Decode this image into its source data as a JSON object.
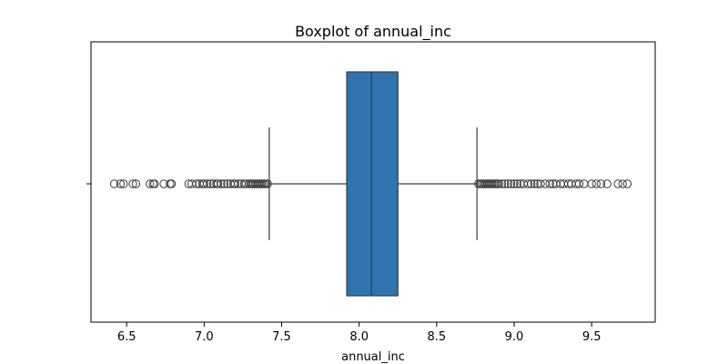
{
  "chart_data": {
    "type": "boxplot",
    "title": "Boxplot of annual_inc",
    "xlabel": "annual_inc",
    "ylabel": "",
    "xlim": [
      6.27,
      9.91
    ],
    "x_ticks": [
      6.5,
      7.0,
      7.5,
      8.0,
      8.5,
      9.0,
      9.5
    ],
    "x_tick_labels": [
      "6.5",
      "7.0",
      "7.5",
      "8.0",
      "8.5",
      "9.0",
      "9.5"
    ],
    "grid": false,
    "box": {
      "whisker_low": 7.42,
      "q1": 7.92,
      "median": 8.08,
      "q3": 8.25,
      "whisker_high": 8.76
    },
    "outliers_low": [
      6.42,
      6.46,
      6.48,
      6.54,
      6.56,
      6.65,
      6.67,
      6.68,
      6.74,
      6.78,
      6.79,
      6.9,
      6.92,
      6.95,
      6.97,
      6.99,
      7.0,
      7.02,
      7.04,
      7.06,
      7.08,
      7.09,
      7.11,
      7.13,
      7.15,
      7.17,
      7.19,
      7.2,
      7.22,
      7.24,
      7.26,
      7.27,
      7.29,
      7.3,
      7.31,
      7.32,
      7.33,
      7.34,
      7.35,
      7.36,
      7.37,
      7.38,
      7.39,
      7.4,
      7.41
    ],
    "outliers_high": [
      8.77,
      8.78,
      8.79,
      8.8,
      8.81,
      8.82,
      8.83,
      8.84,
      8.85,
      8.86,
      8.87,
      8.88,
      8.89,
      8.9,
      8.92,
      8.94,
      8.96,
      8.98,
      9.0,
      9.02,
      9.04,
      9.06,
      9.09,
      9.11,
      9.13,
      9.15,
      9.17,
      9.2,
      9.23,
      9.25,
      9.27,
      9.3,
      9.32,
      9.35,
      9.37,
      9.4,
      9.42,
      9.45,
      9.5,
      9.53,
      9.56,
      9.6,
      9.67,
      9.7,
      9.73
    ],
    "colors": {
      "box_fill": "#2f74ae",
      "line": "#3d3d3d",
      "outlier_edge": "#3d3d3d"
    }
  }
}
